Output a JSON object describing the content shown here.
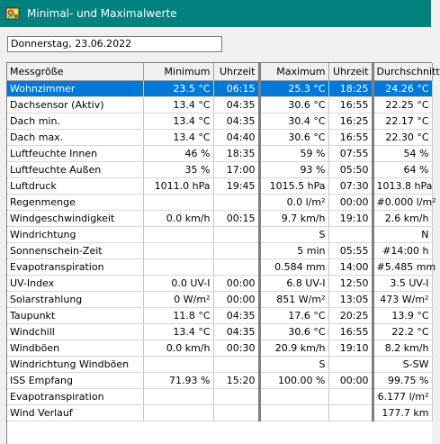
{
  "window": {
    "title": "Minimal- und Maximalwerte"
  },
  "date_field": "Donnerstag, 23.06.2022",
  "table": {
    "headers": [
      "Messgröße",
      "Minimum",
      "Uhrzeit",
      "Maximum",
      "Uhrzeit",
      "Durchschnitt"
    ],
    "rows": [
      [
        "Wohnzimmer",
        "23.5 °C",
        "06:15",
        "25.3 °C",
        "18:25",
        "24.26 °C"
      ],
      [
        "Dachsensor (Aktiv)",
        "13.4 °C",
        "04:35",
        "30.6 °C",
        "16:55",
        "22.25 °C"
      ],
      [
        "Dach min.",
        "13.4 °C",
        "04:35",
        "30.4 °C",
        "16:25",
        "22.17 °C"
      ],
      [
        "Dach max.",
        "13.4 °C",
        "04:40",
        "30.6 °C",
        "16:55",
        "22.30 °C"
      ],
      [
        "Luftfeuchte Innen",
        "46 %",
        "18:35",
        "59 %",
        "07:55",
        "54 %"
      ],
      [
        "Luftfeuchte Außen",
        "35 %",
        "17:00",
        "93 %",
        "05:50",
        "64 %"
      ],
      [
        "Luftdruck",
        "1011.0 hPa",
        "19:45",
        "1015.5 hPa",
        "07:30",
        "1013.8 hPa"
      ],
      [
        "Regenmenge",
        "",
        "",
        "0.0 l/m²",
        "00:00",
        "#0.000 l/m²"
      ],
      [
        "Windgeschwindigkeit",
        "0.0 km/h",
        "00:15",
        "9.7 km/h",
        "19:10",
        "2.6 km/h"
      ],
      [
        "Windrichtung",
        "",
        "",
        "S",
        "",
        "N"
      ],
      [
        "Sonnenschein-Zeit",
        "",
        "",
        "5 min",
        "05:55",
        "#14:00 h"
      ],
      [
        "Evapotranspiration",
        "",
        "",
        "0.584 mm",
        "14:00",
        "#5.485 mm"
      ],
      [
        "UV-Index",
        "0.0 UV-I",
        "00:00",
        "6.8 UV-I",
        "12:50",
        "3.5 UV-I"
      ],
      [
        "Solarstrahlung",
        "0 W/m²",
        "00:00",
        "851 W/m²",
        "13:05",
        "473 W/m²"
      ],
      [
        "Taupunkt",
        "11.8 °C",
        "04:35",
        "17.6 °C",
        "20:25",
        "13.9 °C"
      ],
      [
        "Windchill",
        "13.4 °C",
        "04:35",
        "30.6 °C",
        "16:55",
        "22.2 °C"
      ],
      [
        "Windböen",
        "0.0 km/h",
        "00:30",
        "20.9 km/h",
        "19:10",
        "8.2 km/h"
      ],
      [
        "Windrichtung Windböen",
        "",
        "",
        "S",
        "",
        "S-SW"
      ],
      [
        "ISS Empfang",
        "71.93 %",
        "15:20",
        "100.00 %",
        "00:00",
        "99.75 %"
      ],
      [
        "Evapotranspiration",
        "",
        "",
        "",
        "",
        "6.177 l/m²"
      ],
      [
        "Wind Verlauf",
        "",
        "",
        "",
        "",
        "177.7 km"
      ]
    ],
    "selected_row": 0
  },
  "colors": {
    "titlebar": "#00807f",
    "selection": "#0078d7"
  },
  "icons": {
    "app": "weather-station-icon"
  }
}
